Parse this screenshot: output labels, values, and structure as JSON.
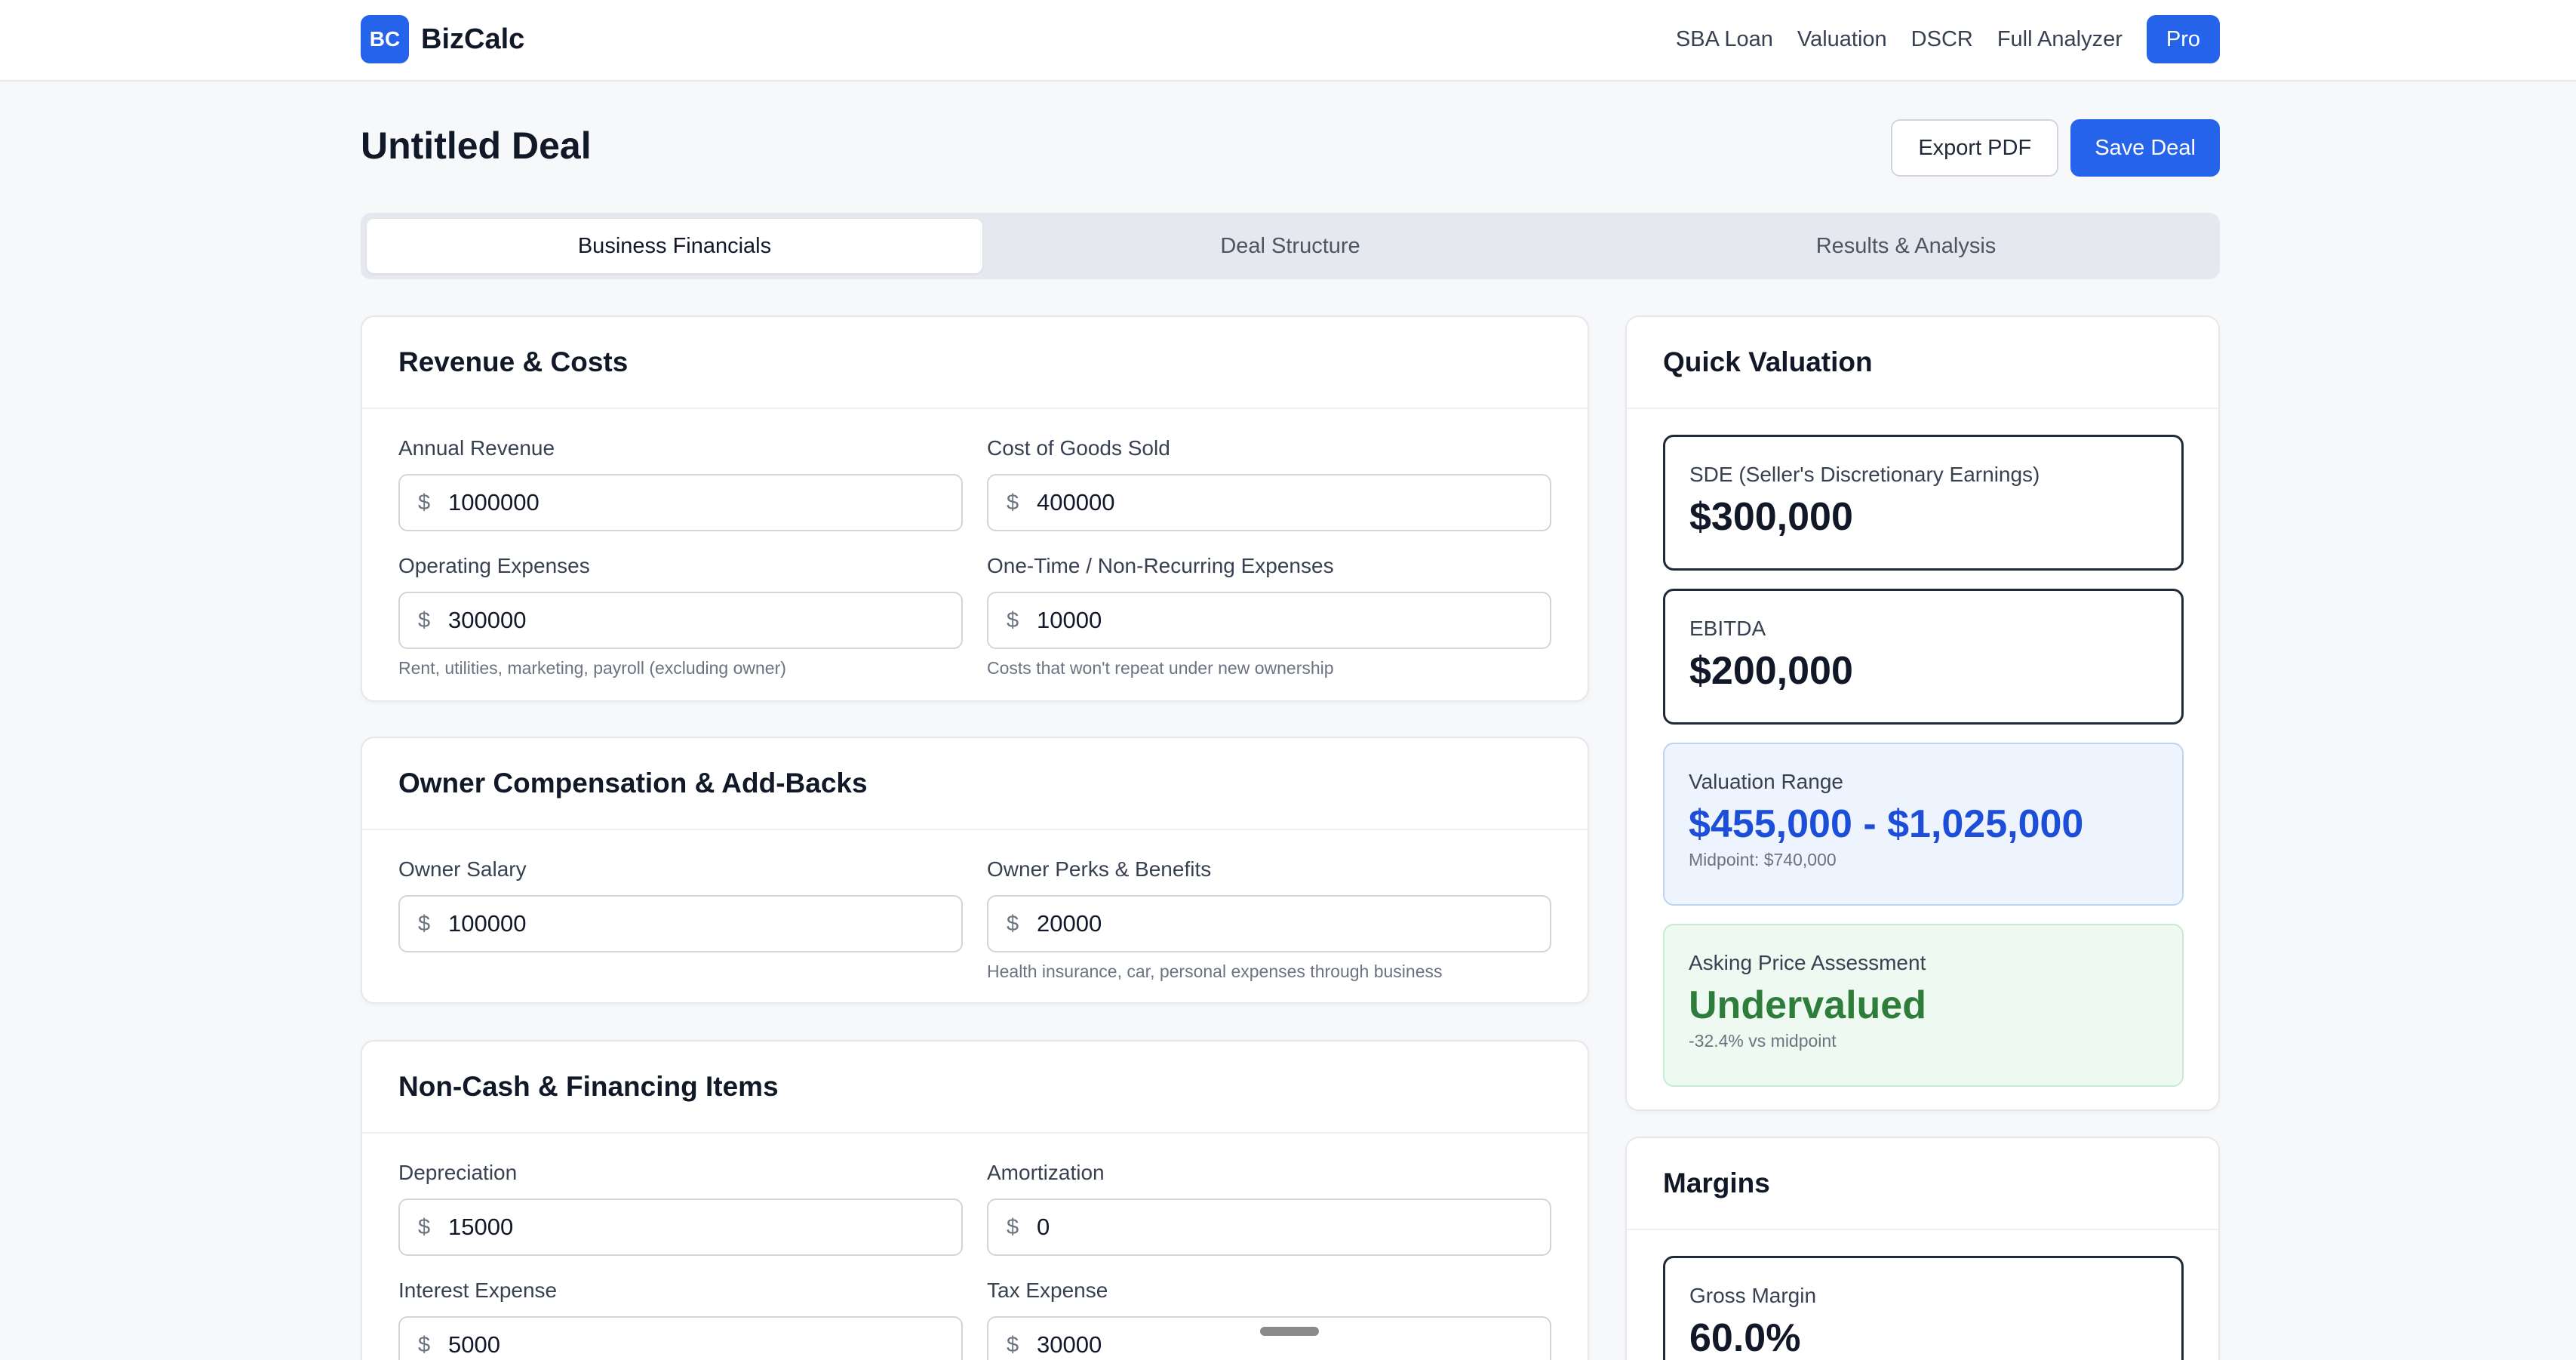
{
  "brand": {
    "logo": "BC",
    "name": "BizCalc"
  },
  "nav": {
    "links": [
      "SBA Loan",
      "Valuation",
      "DSCR",
      "Full Analyzer"
    ],
    "pro": "Pro"
  },
  "header": {
    "title": "Untitled Deal",
    "export_label": "Export PDF",
    "save_label": "Save Deal"
  },
  "tabs": [
    "Business Financials",
    "Deal Structure",
    "Results & Analysis"
  ],
  "active_tab": "Business Financials",
  "currency_symbol": "$",
  "revenue": {
    "title": "Revenue & Costs",
    "annual_revenue": {
      "label": "Annual Revenue",
      "value": "1000000"
    },
    "cogs": {
      "label": "Cost of Goods Sold",
      "value": "400000"
    },
    "opex": {
      "label": "Operating Expenses",
      "value": "300000",
      "hint": "Rent, utilities, marketing, payroll (excluding owner)"
    },
    "one_time": {
      "label": "One-Time / Non-Recurring Expenses",
      "value": "10000",
      "hint": "Costs that won't repeat under new ownership"
    }
  },
  "owner": {
    "title": "Owner Compensation & Add-Backs",
    "salary": {
      "label": "Owner Salary",
      "value": "100000"
    },
    "perks": {
      "label": "Owner Perks & Benefits",
      "value": "20000",
      "hint": "Health insurance, car, personal expenses through business"
    }
  },
  "noncash": {
    "title": "Non-Cash & Financing Items",
    "depreciation": {
      "label": "Depreciation",
      "value": "15000"
    },
    "amortization": {
      "label": "Amortization",
      "value": "0"
    },
    "interest": {
      "label": "Interest Expense",
      "value": "5000"
    },
    "tax": {
      "label": "Tax Expense",
      "value": "30000"
    }
  },
  "quick_valuation": {
    "title": "Quick Valuation",
    "sde": {
      "label": "SDE (Seller's Discretionary Earnings)",
      "value": "$300,000"
    },
    "ebitda": {
      "label": "EBITDA",
      "value": "$200,000"
    },
    "range": {
      "label": "Valuation Range",
      "value": "$455,000 - $1,025,000",
      "sub": "Midpoint: $740,000"
    },
    "assessment": {
      "label": "Asking Price Assessment",
      "value": "Undervalued",
      "sub": "-32.4% vs midpoint"
    }
  },
  "margins": {
    "title": "Margins",
    "gross": {
      "label": "Gross Margin",
      "value": "60.0%"
    }
  },
  "colors": {
    "accent": "#2563eb",
    "valuation_blue": "#1d4ed8",
    "undervalued_green": "#2e7d3a"
  }
}
